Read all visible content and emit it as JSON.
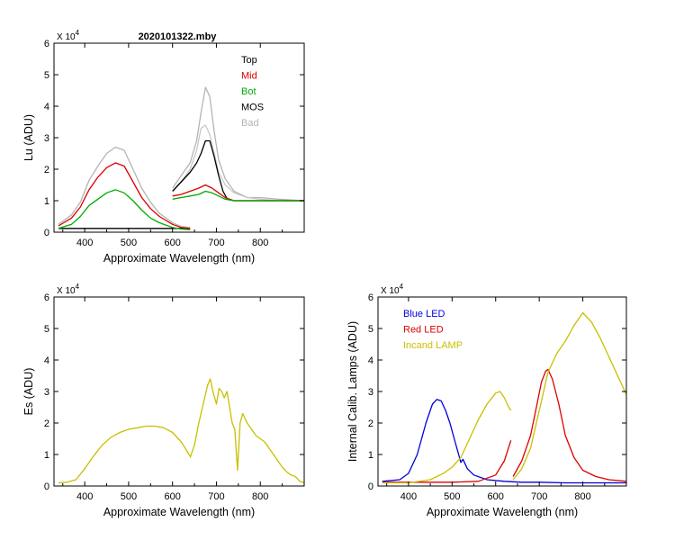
{
  "figure_title": "2020101322.mby",
  "chart_data": [
    {
      "id": "lu",
      "type": "line",
      "title": "2020101322.mby",
      "xlabel": "Approximate Wavelength (nm)",
      "ylabel": "Lu (ADU)",
      "exponent_label": "X 10",
      "exponent_power": "4",
      "xlim": [
        330,
        900
      ],
      "ylim": [
        0,
        6
      ],
      "xticks": [
        400,
        500,
        600,
        700,
        800
      ],
      "yticks": [
        0,
        1,
        2,
        3,
        4,
        5,
        6
      ],
      "legend": [
        "Top",
        "Mid",
        "Bot",
        "MOS",
        "Bad"
      ],
      "series": [
        {
          "name": "Bad",
          "color": "#b4b4b4",
          "x": [
            340,
            370,
            390,
            410,
            430,
            450,
            470,
            490,
            510,
            530,
            550,
            570,
            600,
            620,
            640
          ],
          "y": [
            0.25,
            0.55,
            0.95,
            1.65,
            2.1,
            2.5,
            2.7,
            2.6,
            2.0,
            1.4,
            0.95,
            0.6,
            0.3,
            0.18,
            0.15
          ]
        },
        {
          "name": "Bad",
          "color": "#b4b4b4",
          "x": [
            600,
            620,
            640,
            655,
            665,
            675,
            685,
            695,
            705,
            720,
            740,
            770,
            800,
            840,
            900
          ],
          "y": [
            1.4,
            1.8,
            2.2,
            2.9,
            3.8,
            4.6,
            4.3,
            3.2,
            2.3,
            1.7,
            1.3,
            1.1,
            1.1,
            1.05,
            1.0
          ]
        },
        {
          "name": "Bad",
          "color": "#c8c8c8",
          "x": [
            600,
            620,
            640,
            655,
            665,
            675,
            685,
            695,
            705,
            720,
            740,
            770,
            800,
            840,
            900
          ],
          "y": [
            1.3,
            1.6,
            2.0,
            2.6,
            3.3,
            3.4,
            3.1,
            2.5,
            1.9,
            1.5,
            1.25,
            1.1,
            1.05,
            1.0,
            1.0
          ]
        },
        {
          "name": "Top",
          "color": "#000000",
          "x": [
            600,
            620,
            640,
            655,
            665,
            675,
            685,
            695,
            705,
            715,
            725,
            740,
            760,
            800,
            900
          ],
          "y": [
            1.3,
            1.6,
            1.9,
            2.2,
            2.5,
            2.9,
            2.9,
            2.4,
            1.8,
            1.3,
            1.05,
            1.0,
            1.0,
            1.0,
            1.0
          ]
        },
        {
          "name": "Top",
          "color": "#000000",
          "x": [
            340,
            400,
            500,
            600,
            640
          ],
          "y": [
            0.12,
            0.12,
            0.12,
            0.12,
            0.12
          ]
        },
        {
          "name": "Mid",
          "color": "#dc0000",
          "x": [
            340,
            370,
            390,
            410,
            430,
            450,
            470,
            490,
            510,
            530,
            550,
            570,
            600,
            620,
            640
          ],
          "y": [
            0.2,
            0.45,
            0.8,
            1.35,
            1.75,
            2.05,
            2.2,
            2.1,
            1.6,
            1.1,
            0.75,
            0.5,
            0.25,
            0.15,
            0.12
          ]
        },
        {
          "name": "Mid",
          "color": "#dc0000",
          "x": [
            600,
            620,
            640,
            660,
            675,
            690,
            705,
            720,
            740,
            760,
            800,
            900
          ],
          "y": [
            1.15,
            1.2,
            1.3,
            1.4,
            1.5,
            1.4,
            1.25,
            1.1,
            1.0,
            1.0,
            1.0,
            1.0
          ]
        },
        {
          "name": "Bot",
          "color": "#00aa00",
          "x": [
            340,
            370,
            390,
            410,
            430,
            450,
            470,
            490,
            510,
            530,
            550,
            570,
            600,
            620,
            640
          ],
          "y": [
            0.12,
            0.25,
            0.5,
            0.85,
            1.05,
            1.25,
            1.35,
            1.25,
            1.0,
            0.7,
            0.45,
            0.3,
            0.15,
            0.1,
            0.08
          ]
        },
        {
          "name": "Bot",
          "color": "#00aa00",
          "x": [
            600,
            620,
            640,
            660,
            675,
            690,
            705,
            720,
            740,
            760,
            800,
            900
          ],
          "y": [
            1.05,
            1.1,
            1.15,
            1.2,
            1.3,
            1.25,
            1.15,
            1.05,
            1.0,
            1.0,
            1.0,
            1.0
          ]
        }
      ]
    },
    {
      "id": "es",
      "type": "line",
      "title": "",
      "xlabel": "Approximate Wavelength (nm)",
      "ylabel": "Es (ADU)",
      "exponent_label": "X 10",
      "exponent_power": "4",
      "xlim": [
        330,
        900
      ],
      "ylim": [
        0,
        6
      ],
      "xticks": [
        400,
        500,
        600,
        700,
        800
      ],
      "yticks": [
        0,
        1,
        2,
        3,
        4,
        5,
        6
      ],
      "legend": [],
      "series": [
        {
          "name": "Es",
          "color": "#c8c000",
          "x": [
            340,
            360,
            380,
            400,
            420,
            440,
            460,
            480,
            500,
            520,
            540,
            560,
            580,
            600,
            620,
            640
          ],
          "y": [
            0.1,
            0.12,
            0.2,
            0.55,
            0.95,
            1.3,
            1.55,
            1.7,
            1.8,
            1.85,
            1.9,
            1.9,
            1.85,
            1.7,
            1.4,
            0.95
          ]
        },
        {
          "name": "Es",
          "color": "#c8c000",
          "x": [
            640,
            650,
            660,
            670,
            680,
            686,
            692,
            700,
            706,
            712,
            718,
            724,
            730,
            736,
            742,
            748,
            754,
            760,
            770,
            780,
            790,
            800,
            810,
            820,
            830,
            840,
            850,
            860,
            870,
            880,
            890,
            900
          ],
          "y": [
            0.9,
            1.3,
            2.0,
            2.6,
            3.2,
            3.4,
            3.0,
            2.6,
            3.1,
            3.0,
            2.8,
            3.0,
            2.5,
            2.0,
            1.8,
            0.5,
            2.0,
            2.3,
            2.0,
            1.8,
            1.6,
            1.5,
            1.4,
            1.2,
            1.0,
            0.8,
            0.6,
            0.45,
            0.35,
            0.3,
            0.15,
            0.1
          ]
        }
      ]
    },
    {
      "id": "lamps",
      "type": "line",
      "title": "",
      "xlabel": "Approximate Wavelength (nm)",
      "ylabel": "Internal Calib. Lamps  (ADU)",
      "exponent_label": "X 10",
      "exponent_power": "4",
      "xlim": [
        330,
        900
      ],
      "ylim": [
        0,
        6
      ],
      "xticks": [
        400,
        500,
        600,
        700,
        800
      ],
      "yticks": [
        0,
        1,
        2,
        3,
        4,
        5,
        6
      ],
      "legend": [
        "Blue LED",
        "Red LED",
        "Incand LAMP"
      ],
      "series": [
        {
          "name": "Blue LED",
          "color": "#0000dc",
          "x": [
            340,
            380,
            400,
            420,
            440,
            455,
            465,
            475,
            485,
            495,
            505,
            515,
            520,
            525,
            535,
            550,
            580,
            620,
            660,
            700,
            760,
            800,
            850,
            900
          ],
          "y": [
            0.15,
            0.2,
            0.4,
            1.0,
            2.0,
            2.6,
            2.75,
            2.7,
            2.4,
            2.0,
            1.5,
            1.0,
            0.75,
            0.85,
            0.55,
            0.35,
            0.2,
            0.15,
            0.12,
            0.12,
            0.1,
            0.1,
            0.1,
            0.1
          ]
        },
        {
          "name": "Red LED",
          "color": "#dc0000",
          "x": [
            340,
            400,
            500,
            560,
            600,
            620,
            635
          ],
          "y": [
            0.12,
            0.12,
            0.12,
            0.15,
            0.35,
            0.8,
            1.45
          ]
        },
        {
          "name": "Red LED",
          "color": "#dc0000",
          "x": [
            640,
            660,
            680,
            695,
            705,
            715,
            720,
            730,
            745,
            760,
            780,
            800,
            830,
            860,
            900
          ],
          "y": [
            0.3,
            0.8,
            1.6,
            2.6,
            3.3,
            3.65,
            3.7,
            3.4,
            2.6,
            1.6,
            0.9,
            0.5,
            0.3,
            0.2,
            0.15
          ]
        },
        {
          "name": "Incand LAMP",
          "color": "#c8c000",
          "x": [
            340,
            400,
            450,
            480,
            500,
            520,
            540,
            560,
            580,
            600,
            610,
            620,
            630,
            635
          ],
          "y": [
            0.1,
            0.1,
            0.2,
            0.4,
            0.6,
            0.9,
            1.5,
            2.1,
            2.6,
            2.95,
            3.0,
            2.8,
            2.5,
            2.4
          ]
        },
        {
          "name": "Incand LAMP",
          "color": "#c8c000",
          "x": [
            640,
            660,
            680,
            700,
            720,
            740,
            760,
            780,
            800,
            820,
            840,
            860,
            880,
            900
          ],
          "y": [
            0.2,
            0.55,
            1.2,
            2.4,
            3.6,
            4.2,
            4.6,
            5.1,
            5.5,
            5.2,
            4.7,
            4.1,
            3.5,
            2.9
          ]
        }
      ]
    }
  ]
}
